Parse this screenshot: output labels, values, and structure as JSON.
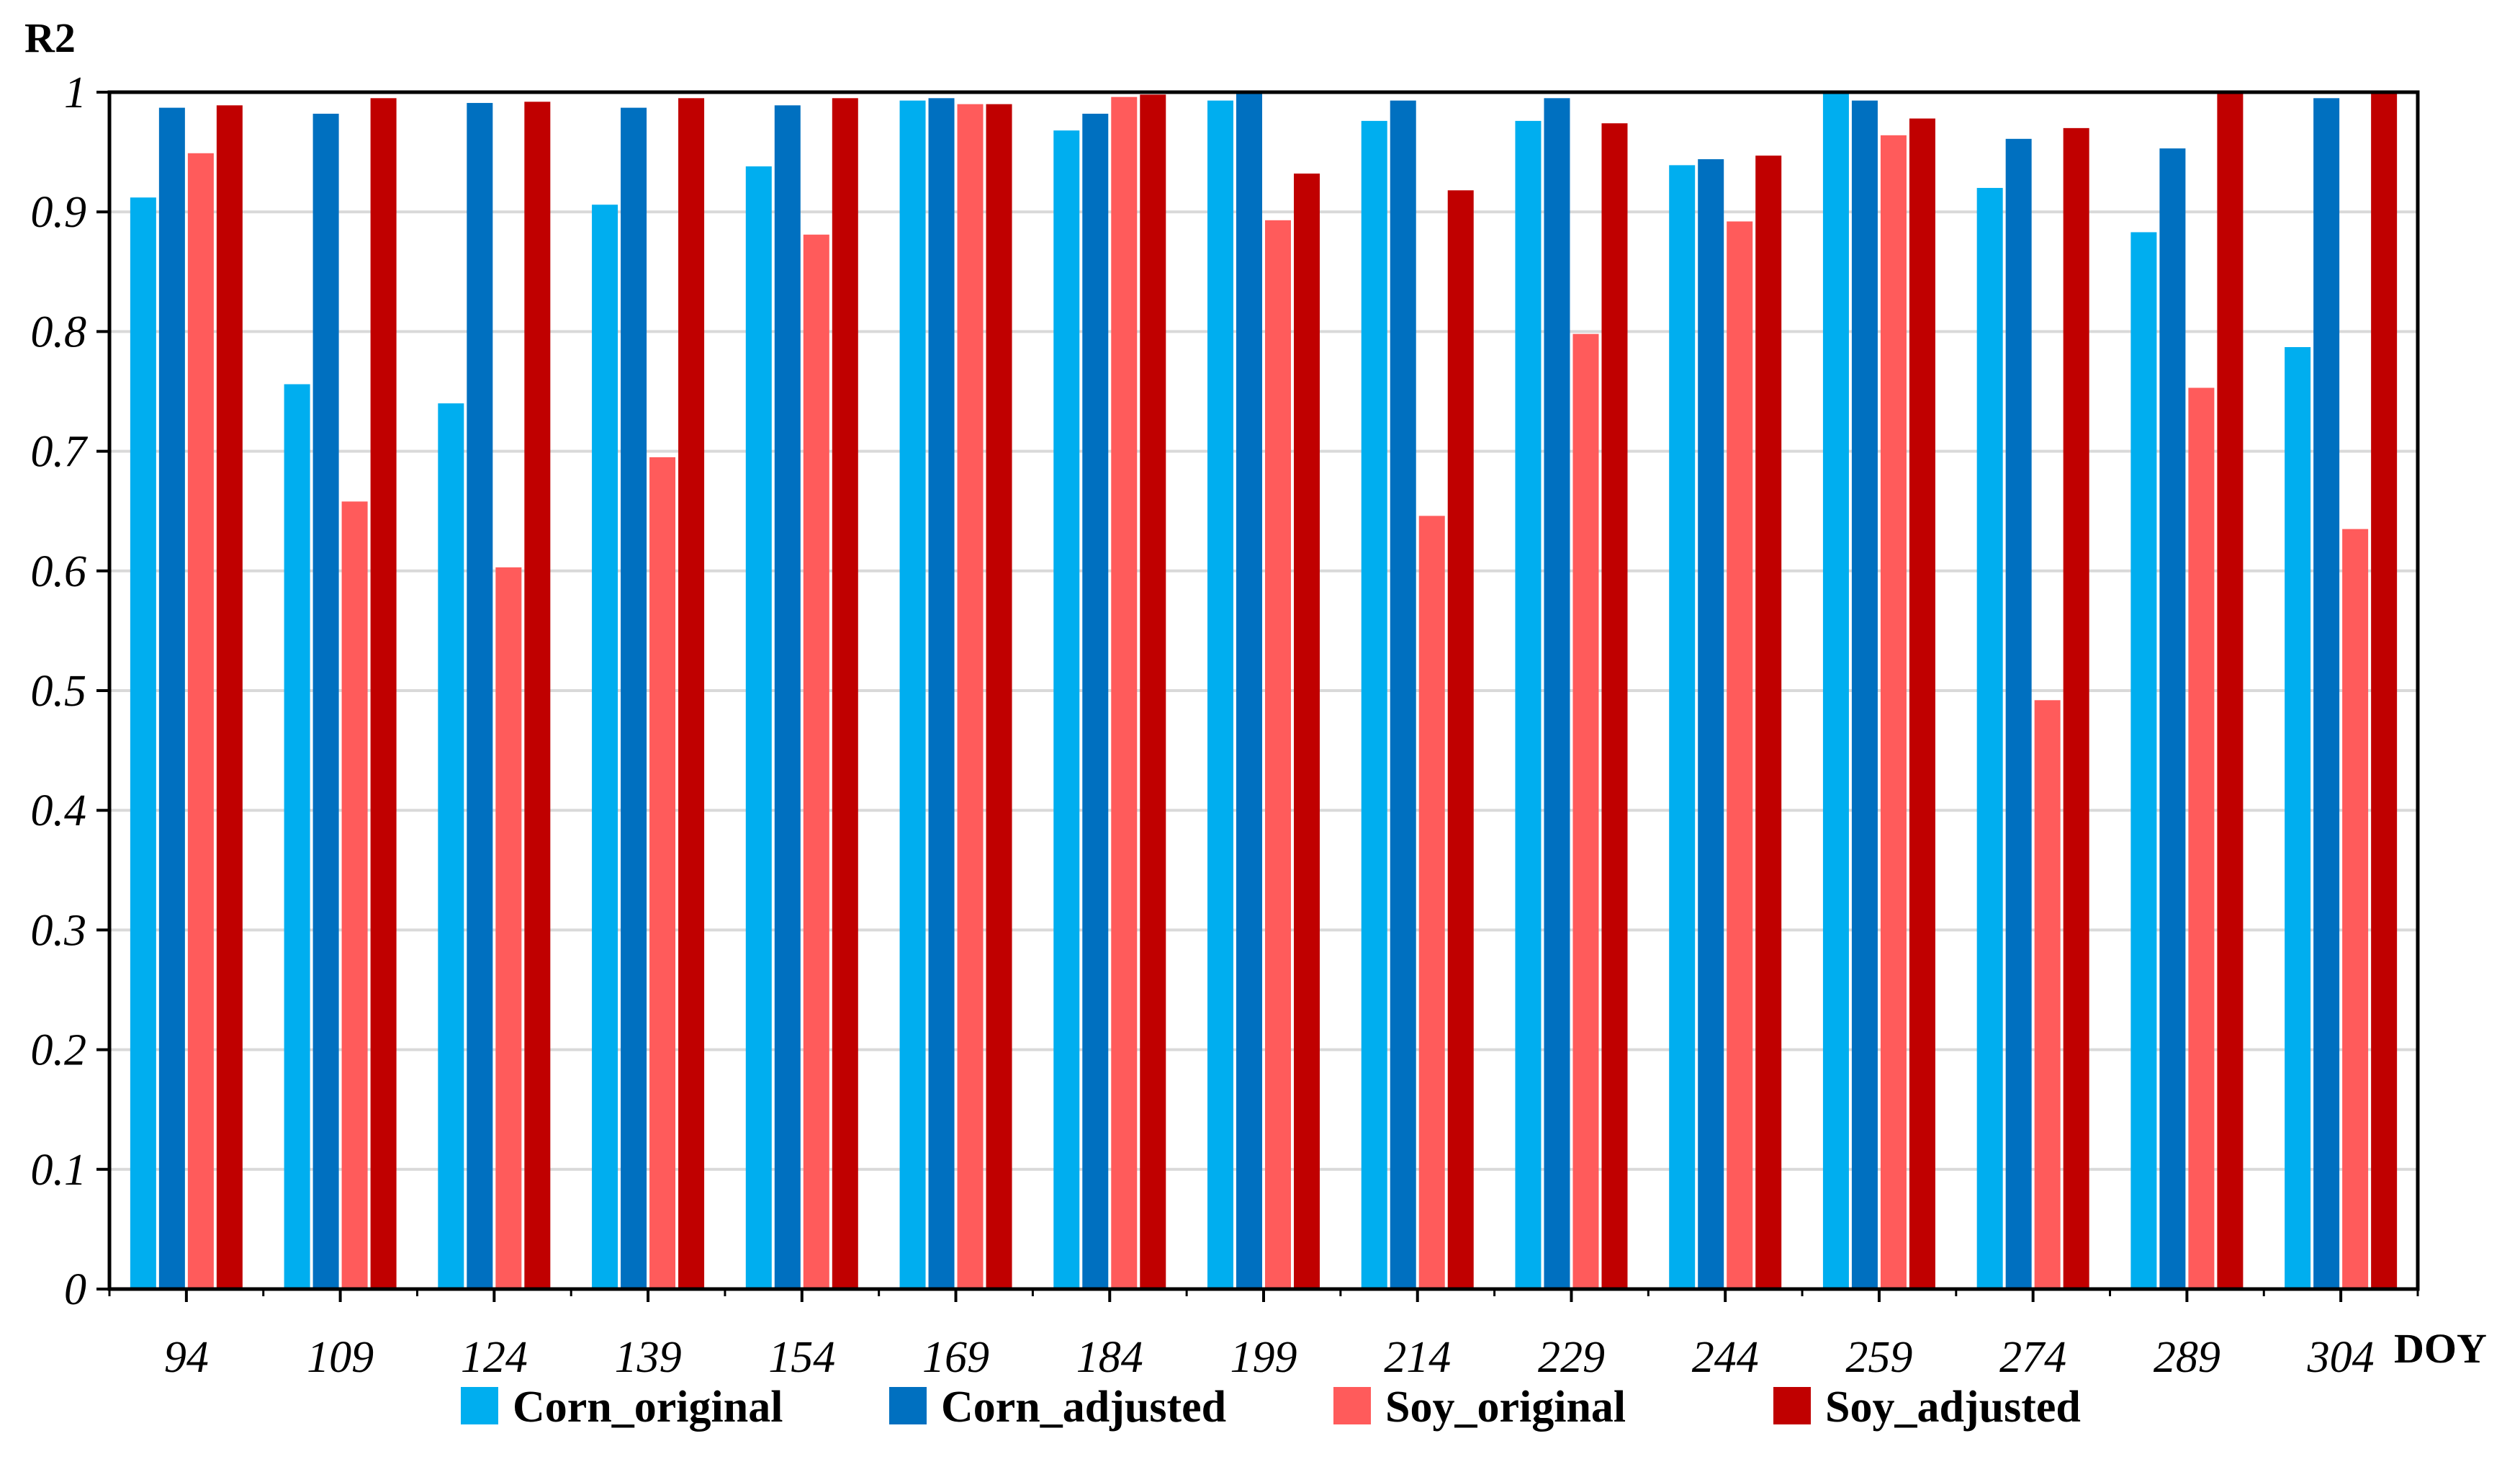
{
  "chart_data": {
    "type": "bar",
    "ylabel": "R2",
    "xlabel": "DOY",
    "ylim": [
      0,
      1
    ],
    "yticks": [
      "0",
      "0.1",
      "0.2",
      "0.3",
      "0.4",
      "0.5",
      "0.6",
      "0.7",
      "0.8",
      "0.9",
      "1"
    ],
    "grid": true,
    "legend_position": "bottom",
    "categories": [
      "94",
      "109",
      "124",
      "139",
      "154",
      "169",
      "184",
      "199",
      "214",
      "229",
      "244",
      "259",
      "274",
      "289",
      "304"
    ],
    "series": [
      {
        "name": "Corn_original",
        "color": "#00AEEF",
        "values": [
          0.912,
          0.756,
          0.74,
          0.906,
          0.938,
          0.993,
          0.968,
          0.993,
          0.976,
          0.976,
          0.939,
          0.999,
          0.92,
          0.883,
          0.787
        ]
      },
      {
        "name": "Corn_adjusted",
        "color": "#0070C0",
        "values": [
          0.987,
          0.982,
          0.991,
          0.987,
          0.989,
          0.995,
          0.982,
          0.999,
          0.993,
          0.995,
          0.944,
          0.993,
          0.961,
          0.953,
          0.995
        ]
      },
      {
        "name": "Soy_original",
        "color": "#FF5B5B",
        "values": [
          0.949,
          0.658,
          0.603,
          0.695,
          0.881,
          0.99,
          0.996,
          0.893,
          0.646,
          0.798,
          0.892,
          0.964,
          0.492,
          0.753,
          0.635
        ]
      },
      {
        "name": "Soy_adjusted",
        "color": "#C00000",
        "values": [
          0.989,
          0.995,
          0.992,
          0.995,
          0.995,
          0.99,
          0.998,
          0.932,
          0.918,
          0.974,
          0.947,
          0.978,
          0.97,
          0.999,
          0.999
        ]
      }
    ]
  }
}
